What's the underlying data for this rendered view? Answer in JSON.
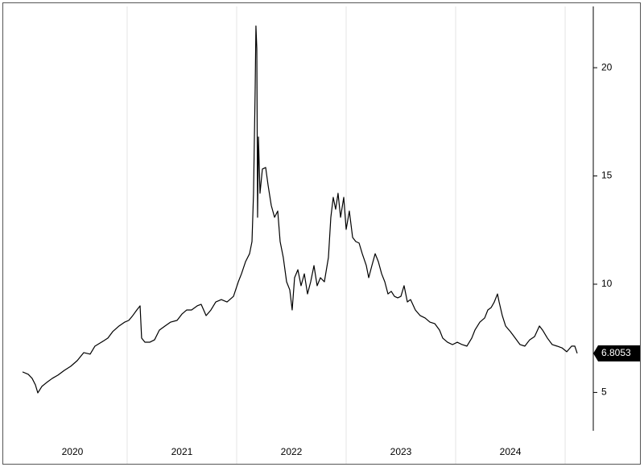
{
  "chart_data": {
    "type": "line",
    "color": "#000000",
    "x": [
      2020.044,
      2020.096,
      2020.132,
      2020.162,
      2020.184,
      2020.221,
      2020.265,
      2020.316,
      2020.368,
      2020.426,
      2020.485,
      2020.544,
      2020.603,
      2020.662,
      2020.706,
      2020.765,
      2020.824,
      2020.868,
      2020.926,
      2020.978,
      2021.015,
      2021.051,
      2021.088,
      2021.118,
      2021.132,
      2021.162,
      2021.206,
      2021.25,
      2021.294,
      2021.346,
      2021.397,
      2021.456,
      2021.5,
      2021.544,
      2021.588,
      2021.64,
      2021.676,
      2021.721,
      2021.765,
      2021.809,
      2021.86,
      2021.912,
      2021.971,
      2022.015,
      2022.044,
      2022.081,
      2022.118,
      2022.14,
      2022.154,
      2022.169,
      2022.176,
      2022.184,
      2022.191,
      2022.199,
      2022.213,
      2022.235,
      2022.265,
      2022.287,
      2022.316,
      2022.346,
      2022.375,
      2022.397,
      2022.426,
      2022.456,
      2022.485,
      2022.507,
      2022.529,
      2022.559,
      2022.588,
      2022.618,
      2022.647,
      2022.676,
      2022.706,
      2022.735,
      2022.765,
      2022.801,
      2022.838,
      2022.86,
      2022.882,
      2022.904,
      2022.926,
      2022.949,
      2022.978,
      2023.0,
      2023.029,
      2023.059,
      2023.088,
      2023.118,
      2023.147,
      2023.184,
      2023.206,
      2023.235,
      2023.265,
      2023.294,
      2023.324,
      2023.353,
      2023.382,
      2023.412,
      2023.441,
      2023.471,
      2023.5,
      2023.529,
      2023.559,
      2023.588,
      2023.632,
      2023.676,
      2023.721,
      2023.765,
      2023.809,
      2023.853,
      2023.882,
      2023.926,
      2023.971,
      2024.015,
      2024.059,
      2024.103,
      2024.147,
      2024.176,
      2024.221,
      2024.265,
      2024.294,
      2024.324,
      2024.353,
      2024.382,
      2024.397,
      2024.426,
      2024.456,
      2024.5,
      2024.544,
      2024.588,
      2024.632,
      2024.676,
      2024.721,
      2024.765,
      2024.794,
      2024.838,
      2024.882,
      2024.926,
      2024.971,
      2025.015,
      2025.059,
      2025.088,
      2025.11
    ],
    "values": [
      5.95,
      5.84,
      5.65,
      5.35,
      4.98,
      5.28,
      5.46,
      5.65,
      5.8,
      6.02,
      6.21,
      6.47,
      6.84,
      6.77,
      7.14,
      7.32,
      7.51,
      7.81,
      8.07,
      8.25,
      8.33,
      8.55,
      8.81,
      9.0,
      7.51,
      7.32,
      7.32,
      7.43,
      7.88,
      8.07,
      8.25,
      8.33,
      8.62,
      8.81,
      8.81,
      9.0,
      9.07,
      8.55,
      8.81,
      9.18,
      9.29,
      9.18,
      9.44,
      10.11,
      10.48,
      11.04,
      11.41,
      11.97,
      14.2,
      19.03,
      21.93,
      20.89,
      13.09,
      16.8,
      14.2,
      15.32,
      15.39,
      14.57,
      13.64,
      13.09,
      13.38,
      11.97,
      11.23,
      10.11,
      9.74,
      8.81,
      10.3,
      10.67,
      9.93,
      10.48,
      9.55,
      10.11,
      10.86,
      9.93,
      10.3,
      10.11,
      11.23,
      13.09,
      14.01,
      13.46,
      14.2,
      13.09,
      14.01,
      12.53,
      13.38,
      12.16,
      11.97,
      11.9,
      11.41,
      10.86,
      10.3,
      10.86,
      11.41,
      11.04,
      10.48,
      10.11,
      9.55,
      9.67,
      9.44,
      9.37,
      9.44,
      9.93,
      9.18,
      9.29,
      8.81,
      8.55,
      8.44,
      8.25,
      8.18,
      7.88,
      7.51,
      7.32,
      7.21,
      7.32,
      7.21,
      7.14,
      7.51,
      7.88,
      8.25,
      8.44,
      8.81,
      8.92,
      9.18,
      9.55,
      9.18,
      8.55,
      8.07,
      7.81,
      7.51,
      7.21,
      7.14,
      7.43,
      7.58,
      8.07,
      7.88,
      7.51,
      7.21,
      7.14,
      7.06,
      6.88,
      7.14,
      7.14,
      6.8053
    ],
    "xlim": [
      2019.868,
      2025.257
    ],
    "ylim": [
      3.23,
      22.83
    ],
    "xticks": [
      {
        "value": 2020.5,
        "label": "2020"
      },
      {
        "value": 2021.5,
        "label": "2021"
      },
      {
        "value": 2022.5,
        "label": "2022"
      },
      {
        "value": 2023.5,
        "label": "2023"
      },
      {
        "value": 2024.5,
        "label": "2024"
      }
    ],
    "yticks": [
      5,
      10,
      15,
      20
    ],
    "y_axis_side": "right"
  }
}
